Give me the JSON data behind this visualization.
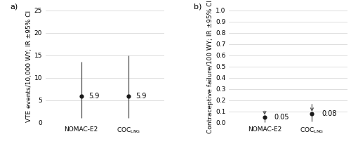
{
  "panel_a": {
    "label": "a)",
    "ylabel": "VTE events/10,000 WY; IR ±95% CI",
    "ylim": [
      0,
      25
    ],
    "yticks": [
      0,
      5,
      10,
      15,
      20,
      25
    ],
    "x_labels": [
      "NOMAC-E2",
      "COC$_{\\rm LNG}$"
    ],
    "values": [
      5.9,
      5.9
    ],
    "ci_low": [
      1.0,
      1.0
    ],
    "ci_high": [
      13.5,
      15.0
    ],
    "annotations": [
      "5.9",
      "5.9"
    ]
  },
  "panel_b": {
    "label": "b)",
    "ylabel": "Contraceptive failure/100 WY; IR ±95% CI",
    "ylim": [
      0,
      1.0
    ],
    "yticks": [
      0,
      0.1,
      0.2,
      0.3,
      0.4,
      0.5,
      0.6,
      0.7,
      0.8,
      0.9,
      1.0
    ],
    "x_labels": [
      "NOMAC-E2",
      "COC$_{\\rm LNG}$"
    ],
    "values": [
      0.05,
      0.08
    ],
    "ci_low": [
      0.005,
      0.01
    ],
    "ci_high": [
      0.12,
      0.18
    ],
    "annotations": [
      "0.05",
      "0.08"
    ]
  },
  "marker_color": "#1a1a1a",
  "line_color": "#555555",
  "arrow_color": "#555555",
  "font_size": 7,
  "label_font_size": 6.5,
  "tick_font_size": 6.5,
  "background_color": "#ffffff",
  "grid_color": "#d0d0d0"
}
